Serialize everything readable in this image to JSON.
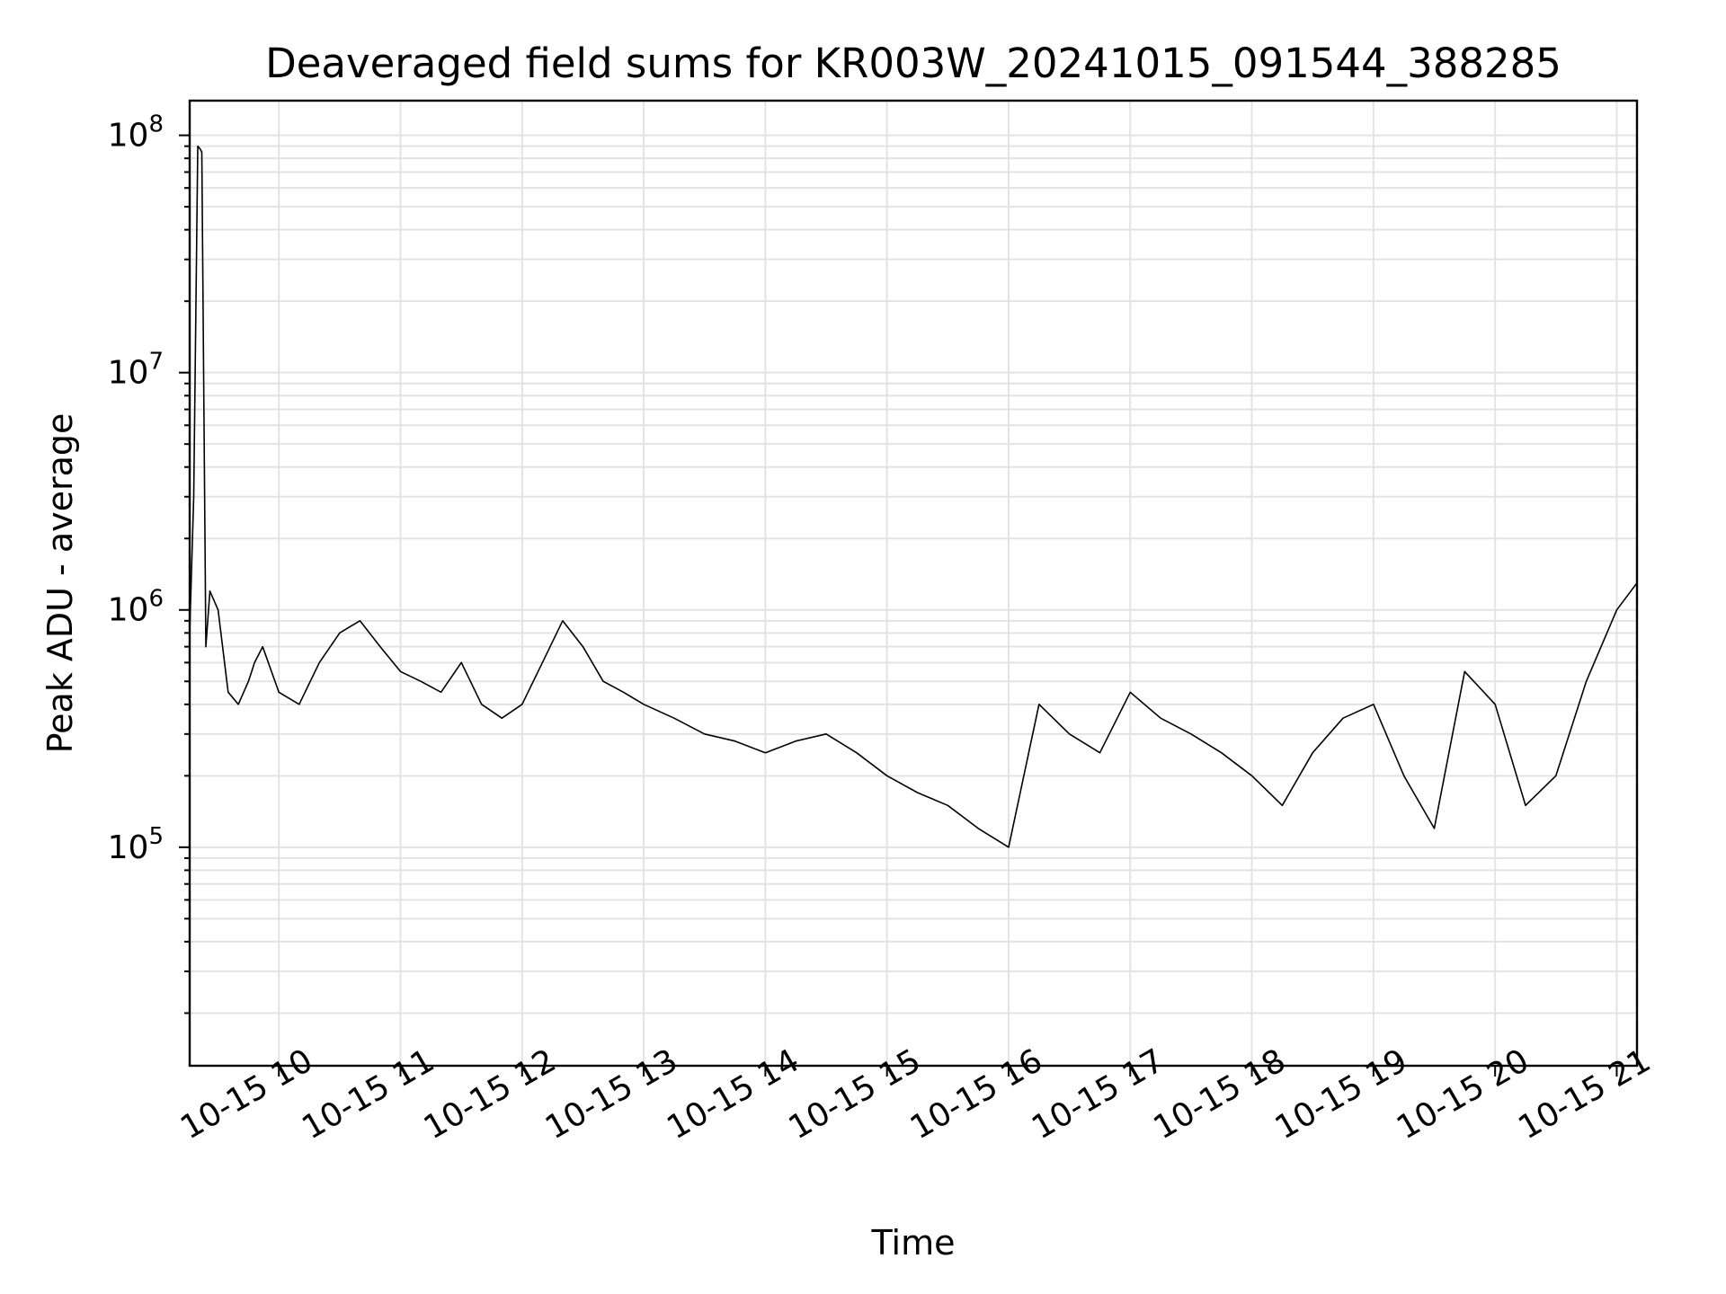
{
  "chart_data": {
    "type": "line",
    "title": "Deaveraged field sums for KR003W_20241015_091544_388285",
    "xlabel": "Time",
    "ylabel": "Peak ADU - average",
    "x_tick_labels": [
      "10-15 10",
      "10-15 11",
      "10-15 12",
      "10-15 13",
      "10-15 14",
      "10-15 15",
      "10-15 16",
      "10-15 17",
      "10-15 18",
      "10-15 19",
      "10-15 20",
      "10-15 21"
    ],
    "y_tick_labels": [
      {
        "base": "10",
        "exp": "5",
        "value": 100000
      },
      {
        "base": "10",
        "exp": "6",
        "value": 1000000
      },
      {
        "base": "10",
        "exp": "7",
        "value": 10000000
      },
      {
        "base": "10",
        "exp": "8",
        "value": 100000000
      }
    ],
    "xlim": [
      "2024-10-15 09:16",
      "2024-10-15 21:10"
    ],
    "ylim": [
      12000,
      140000000
    ],
    "yscale": "log",
    "grid": true,
    "line_color": "#000000",
    "series": [
      {
        "x": [
          "2024-10-15 09:16",
          "2024-10-15 09:18",
          "2024-10-15 09:20",
          "2024-10-15 09:21",
          "2024-10-15 09:22",
          "2024-10-15 09:24",
          "2024-10-15 09:26",
          "2024-10-15 09:30",
          "2024-10-15 09:35",
          "2024-10-15 09:40",
          "2024-10-15 09:45",
          "2024-10-15 09:48",
          "2024-10-15 09:52",
          "2024-10-15 10:00",
          "2024-10-15 10:10",
          "2024-10-15 10:20",
          "2024-10-15 10:30",
          "2024-10-15 10:40",
          "2024-10-15 10:50",
          "2024-10-15 11:00",
          "2024-10-15 11:10",
          "2024-10-15 11:20",
          "2024-10-15 11:30",
          "2024-10-15 11:40",
          "2024-10-15 11:50",
          "2024-10-15 12:00",
          "2024-10-15 12:10",
          "2024-10-15 12:20",
          "2024-10-15 12:30",
          "2024-10-15 12:40",
          "2024-10-15 12:50",
          "2024-10-15 13:00",
          "2024-10-15 13:15",
          "2024-10-15 13:30",
          "2024-10-15 13:45",
          "2024-10-15 14:00",
          "2024-10-15 14:15",
          "2024-10-15 14:30",
          "2024-10-15 14:45",
          "2024-10-15 15:00",
          "2024-10-15 15:15",
          "2024-10-15 15:30",
          "2024-10-15 15:45",
          "2024-10-15 16:00",
          "2024-10-15 16:15",
          "2024-10-15 16:30",
          "2024-10-15 16:45",
          "2024-10-15 17:00",
          "2024-10-15 17:15",
          "2024-10-15 17:30",
          "2024-10-15 17:45",
          "2024-10-15 18:00",
          "2024-10-15 18:15",
          "2024-10-15 18:30",
          "2024-10-15 18:45",
          "2024-10-15 19:00",
          "2024-10-15 19:15",
          "2024-10-15 19:30",
          "2024-10-15 19:45",
          "2024-10-15 20:00",
          "2024-10-15 20:15",
          "2024-10-15 20:30",
          "2024-10-15 20:45",
          "2024-10-15 21:00",
          "2024-10-15 21:10"
        ],
        "values": [
          800000,
          3000000,
          90000000,
          88000000,
          85000000,
          700000,
          1200000,
          1000000,
          450000,
          400000,
          500000,
          600000,
          700000,
          450000,
          400000,
          600000,
          800000,
          900000,
          700000,
          550000,
          500000,
          450000,
          600000,
          400000,
          350000,
          400000,
          600000,
          900000,
          700000,
          500000,
          450000,
          400000,
          350000,
          300000,
          280000,
          250000,
          280000,
          300000,
          250000,
          200000,
          170000,
          150000,
          120000,
          100000,
          400000,
          300000,
          250000,
          450000,
          350000,
          300000,
          250000,
          200000,
          150000,
          250000,
          350000,
          400000,
          200000,
          120000,
          550000,
          400000,
          150000,
          200000,
          500000,
          1000000,
          1300000
        ]
      }
    ]
  }
}
